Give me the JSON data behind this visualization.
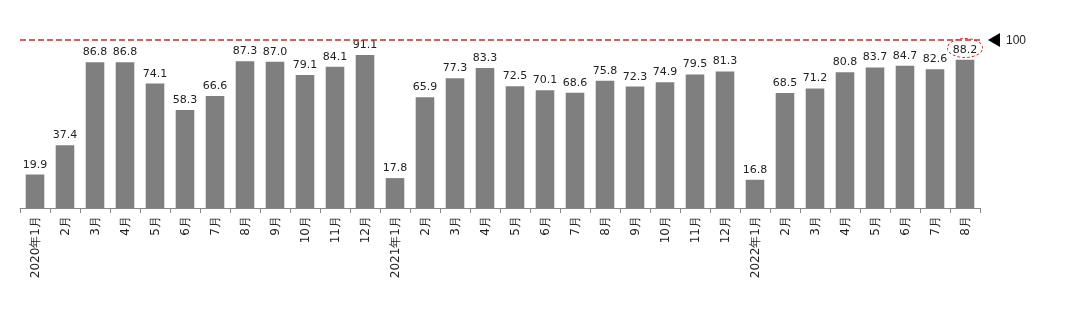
{
  "chart_data": {
    "type": "bar",
    "categories": [
      "2020年1月",
      "2月",
      "3月",
      "4月",
      "5月",
      "6月",
      "7月",
      "8月",
      "9月",
      "10月",
      "11月",
      "12月",
      "2021年1月",
      "2月",
      "3月",
      "4月",
      "5月",
      "6月",
      "7月",
      "8月",
      "9月",
      "10月",
      "11月",
      "12月",
      "2022年1月",
      "2月",
      "3月",
      "4月",
      "5月",
      "6月",
      "7月",
      "8月"
    ],
    "values": [
      19.9,
      37.4,
      86.8,
      86.8,
      74.1,
      58.3,
      66.6,
      87.3,
      87.0,
      79.1,
      84.1,
      91.1,
      17.8,
      65.9,
      77.3,
      83.3,
      72.5,
      70.1,
      68.6,
      75.8,
      72.3,
      74.9,
      79.5,
      81.3,
      16.8,
      68.5,
      71.2,
      80.8,
      83.7,
      84.7,
      82.6,
      88.2
    ],
    "value_labels": [
      "19.9",
      "37.4",
      "86.8",
      "86.8",
      "74.1",
      "58.3",
      "66.6",
      "87.3",
      "87.0",
      "79.1",
      "84.1",
      "91.1",
      "17.8",
      "65.9",
      "77.3",
      "83.3",
      "72.5",
      "70.1",
      "68.6",
      "75.8",
      "72.3",
      "74.9",
      "79.5",
      "81.3",
      "16.8",
      "68.5",
      "71.2",
      "80.8",
      "83.7",
      "84.7",
      "82.6",
      "88.2"
    ],
    "color": "#7f7f7f",
    "ref_lines": [
      {
        "axis": "y",
        "value": 100,
        "label": "100",
        "color": "#d42a2a",
        "line_style": "dashed"
      }
    ]
  }
}
